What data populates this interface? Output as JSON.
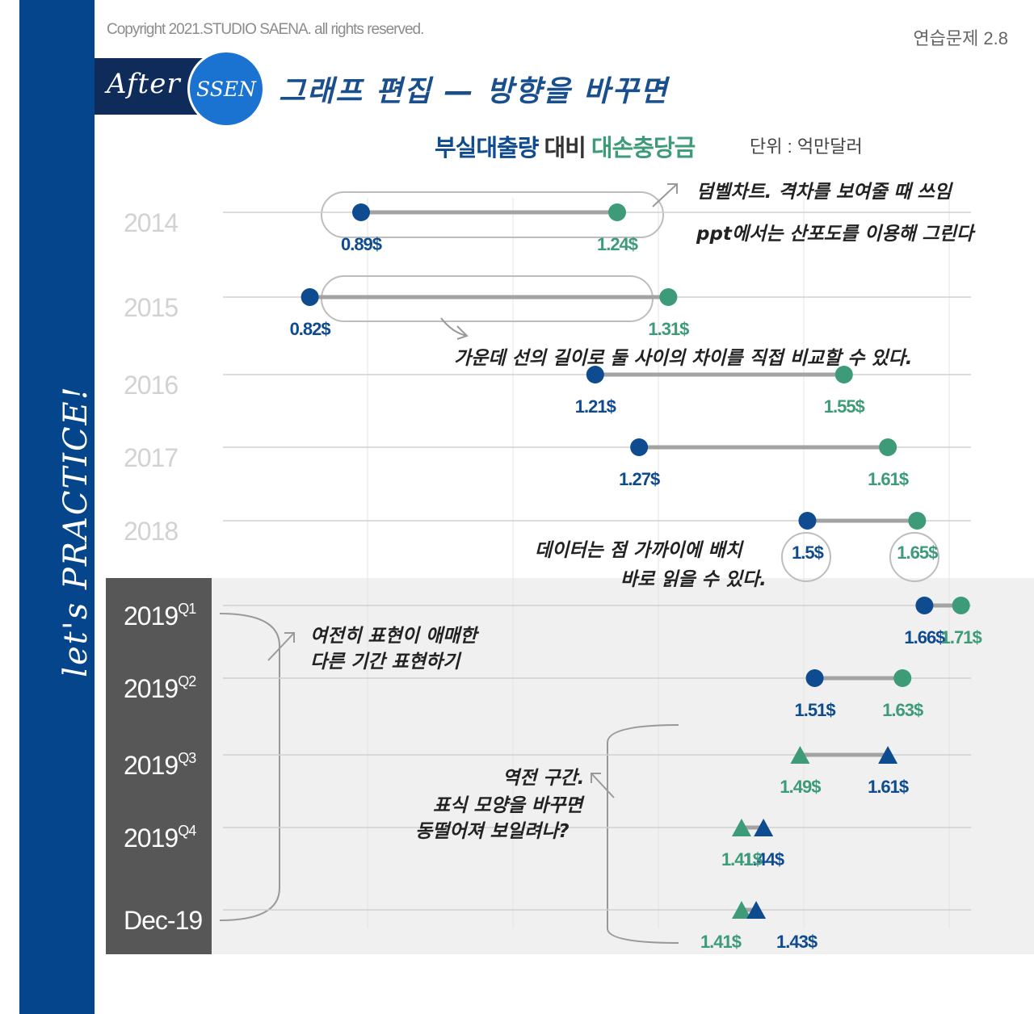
{
  "copyright": "Copyright 2021.STUDIO SAENA. all rights reserved.",
  "exercise": "연습문제 2.8",
  "sidebar_text": "let's PRACTICE!",
  "header": {
    "after": "After",
    "ssen": "SSEN",
    "title": "그래프 편집 — 방향을 바꾸면"
  },
  "chart_title": {
    "part1": "부실대출량",
    "part2": " 대비 ",
    "part3": "대손충당금"
  },
  "unit": "단위 : 억만달러",
  "annotations": {
    "dumbbell_1": "덤벨차트. 격차를 보여줄 때 쓰임",
    "dumbbell_2": "ppt에서는 산포도를 이용해 그린다",
    "middle_line": "가운데 선의 길이로 둘 사이의 차이를 직접 비교할 수 있다.",
    "labels_1": "데이터는 점 가까이에 배치",
    "labels_2": "바로 읽을 수 있다.",
    "period_1": "여전히 표현이 애매한",
    "period_2": "다른 기간 표현하기",
    "reverse_1": "역전 구간.",
    "reverse_2": "표식 모양을 바꾸면",
    "reverse_3": "동떨어져 보일려나?"
  },
  "colors": {
    "loan": "#0f4b8f",
    "allowance": "#3d9b78",
    "line": "#a3a3a3",
    "sidebar": "#05458c"
  },
  "chart_data": {
    "type": "dumbbell",
    "series": [
      {
        "name": "부실대출량"
      },
      {
        "name": "대손충당금"
      }
    ],
    "rows": [
      {
        "year": "2014",
        "sup": "",
        "loan": 0.89,
        "allowance": 1.24,
        "loan_label": "0.89$",
        "allowance_label": "1.24$",
        "marker": "circle"
      },
      {
        "year": "2015",
        "sup": "",
        "loan": 0.82,
        "allowance": 1.31,
        "loan_label": "0.82$",
        "allowance_label": "1.31$",
        "marker": "circle"
      },
      {
        "year": "2016",
        "sup": "",
        "loan": 1.21,
        "allowance": 1.55,
        "loan_label": "1.21$",
        "allowance_label": "1.55$",
        "marker": "circle"
      },
      {
        "year": "2017",
        "sup": "",
        "loan": 1.27,
        "allowance": 1.61,
        "loan_label": "1.27$",
        "allowance_label": "1.61$",
        "marker": "circle"
      },
      {
        "year": "2018",
        "sup": "",
        "loan": 1.5,
        "allowance": 1.65,
        "loan_label": "1.5$",
        "allowance_label": "1.65$",
        "marker": "circle"
      },
      {
        "year": "2019",
        "sup": "Q1",
        "loan": 1.66,
        "allowance": 1.71,
        "loan_label": "1.66$",
        "allowance_label": "1.71$",
        "marker": "circle"
      },
      {
        "year": "2019",
        "sup": "Q2",
        "loan": 1.51,
        "allowance": 1.63,
        "loan_label": "1.51$",
        "allowance_label": "1.63$",
        "marker": "circle"
      },
      {
        "year": "2019",
        "sup": "Q3",
        "loan": 1.61,
        "allowance": 1.49,
        "loan_label": "1.61$",
        "allowance_label": "1.49$",
        "marker": "triangle"
      },
      {
        "year": "2019",
        "sup": "Q4",
        "loan": 1.44,
        "allowance": 1.41,
        "loan_label": "1.44$",
        "allowance_label": "1.41$",
        "marker": "triangle"
      },
      {
        "year": "Dec-19",
        "sup": "",
        "loan": 1.43,
        "allowance": 1.41,
        "loan_label": "1.43$",
        "allowance_label": "1.41$",
        "marker": "triangle"
      }
    ],
    "xlim": [
      0.7,
      1.75
    ],
    "grid": true
  }
}
